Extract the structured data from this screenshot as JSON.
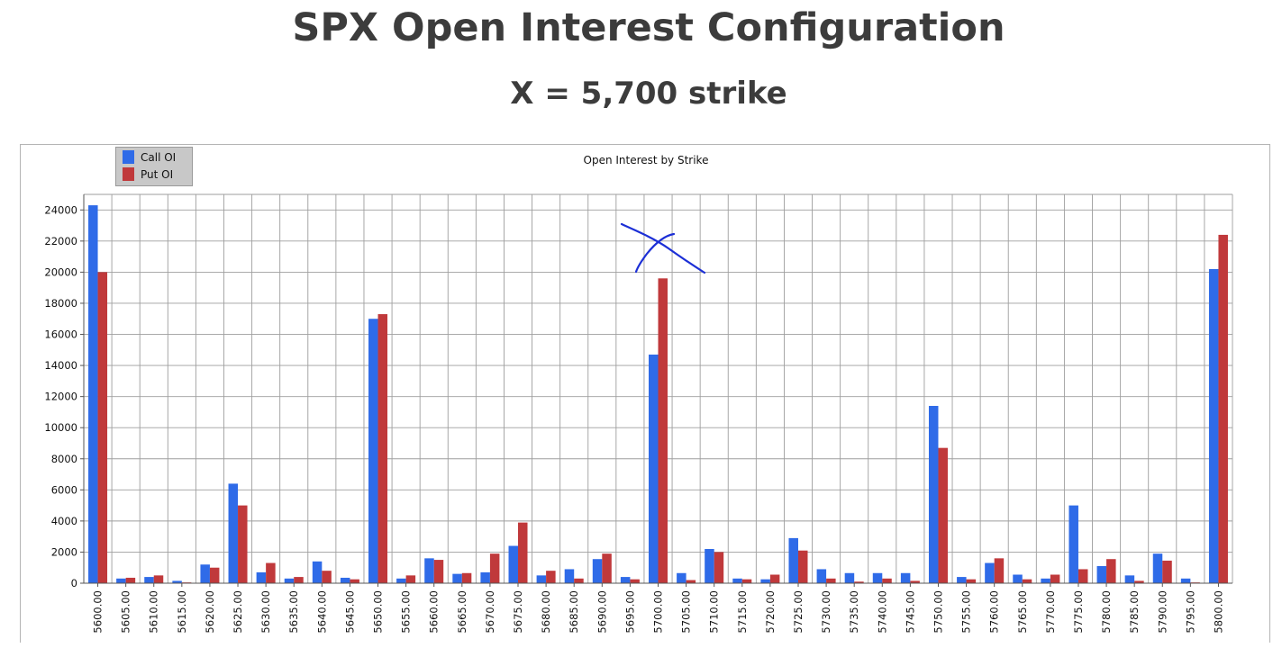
{
  "header": {
    "title": "SPX Open Interest Configuration",
    "subtitle": "X = 5,700 strike"
  },
  "annotation": {
    "mark": "X",
    "strike": "5700.00",
    "color": "#1c2fd6"
  },
  "chart_data": {
    "type": "bar",
    "title": "Open Interest by Strike",
    "xlabel": "",
    "ylabel": "",
    "ylim": [
      0,
      25000
    ],
    "yticks": [
      0,
      2000,
      4000,
      6000,
      8000,
      10000,
      12000,
      14000,
      16000,
      18000,
      20000,
      22000,
      24000
    ],
    "grid": true,
    "legend_position": "top-left",
    "categories": [
      "5600.00",
      "5605.00",
      "5610.00",
      "5615.00",
      "5620.00",
      "5625.00",
      "5630.00",
      "5635.00",
      "5640.00",
      "5645.00",
      "5650.00",
      "5655.00",
      "5660.00",
      "5665.00",
      "5670.00",
      "5675.00",
      "5680.00",
      "5685.00",
      "5690.00",
      "5695.00",
      "5700.00",
      "5705.00",
      "5710.00",
      "5715.00",
      "5720.00",
      "5725.00",
      "5730.00",
      "5735.00",
      "5740.00",
      "5745.00",
      "5750.00",
      "5755.00",
      "5760.00",
      "5765.00",
      "5770.00",
      "5775.00",
      "5780.00",
      "5785.00",
      "5790.00",
      "5795.00",
      "5800.00"
    ],
    "series": [
      {
        "name": "Call OI",
        "color": "#2f6be8",
        "values": [
          24300,
          300,
          400,
          150,
          1200,
          6400,
          700,
          300,
          1400,
          350,
          17000,
          300,
          1600,
          600,
          700,
          2400,
          500,
          900,
          1550,
          400,
          14700,
          650,
          2200,
          300,
          250,
          2900,
          900,
          650,
          650,
          650,
          11400,
          400,
          1300,
          550,
          300,
          5000,
          1100,
          500,
          1900,
          300,
          20200
        ]
      },
      {
        "name": "Put OI",
        "color": "#c0393b",
        "values": [
          20000,
          350,
          500,
          50,
          1000,
          5000,
          1300,
          400,
          800,
          250,
          17300,
          500,
          1500,
          650,
          1900,
          3900,
          800,
          300,
          1900,
          250,
          19600,
          200,
          2000,
          250,
          550,
          2100,
          300,
          100,
          300,
          150,
          8700,
          250,
          1600,
          250,
          550,
          900,
          1550,
          150,
          1450,
          50,
          22400
        ]
      }
    ]
  }
}
